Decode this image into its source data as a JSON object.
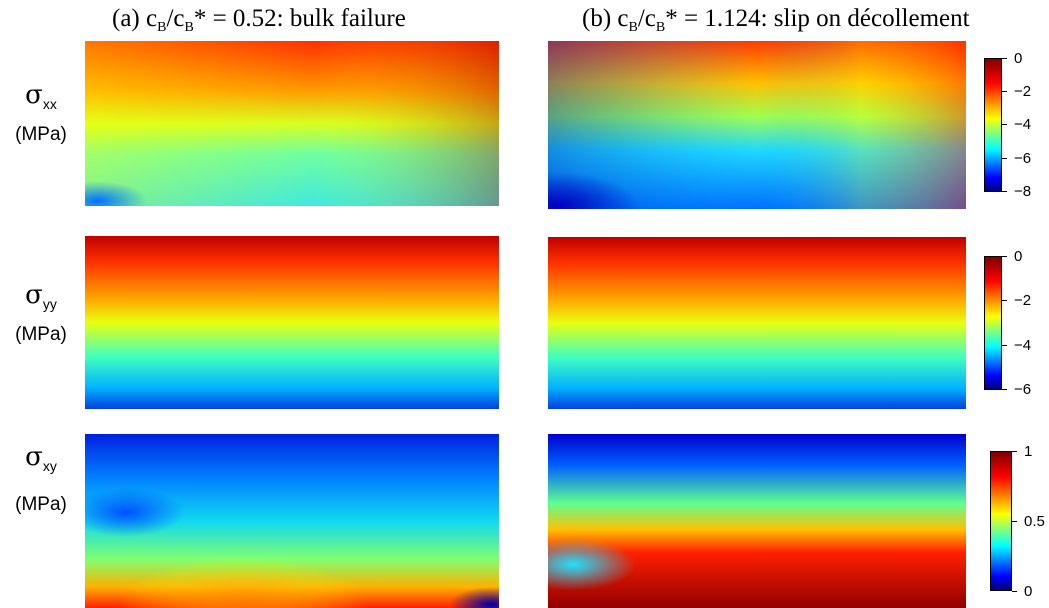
{
  "columns": [
    {
      "prefix": "(a) c",
      "sub1": "B",
      "mid": "/c",
      "sub2": "B",
      "suffix": "* = 0.52: bulk failure"
    },
    {
      "prefix": "(b) c",
      "sub1": "B",
      "mid": "/c",
      "sub2": "B",
      "suffix": "* = 1.124: slip on décollement"
    }
  ],
  "rows": [
    {
      "symbol": "σ",
      "subscript": "xx",
      "unit": "(MPa)"
    },
    {
      "symbol": "σ",
      "subscript": "yy",
      "unit": "(MPa)"
    },
    {
      "symbol": "σ",
      "subscript": "xy",
      "unit": "(MPa)"
    }
  ],
  "colorbars": [
    {
      "min": -8,
      "max": 0,
      "ticks": [
        "0",
        "−2",
        "−4",
        "−6",
        "−8"
      ]
    },
    {
      "min": -6,
      "max": 0,
      "ticks": [
        "0",
        "−2",
        "−4",
        "−6"
      ]
    },
    {
      "min": 0,
      "max": 1,
      "ticks": [
        "1",
        "0.5",
        "0"
      ]
    }
  ],
  "colormap": "jet",
  "colormap_stops": [
    "#00007f",
    "#0000ff",
    "#00ffff",
    "#ffff00",
    "#ff0000",
    "#7f0000"
  ]
}
